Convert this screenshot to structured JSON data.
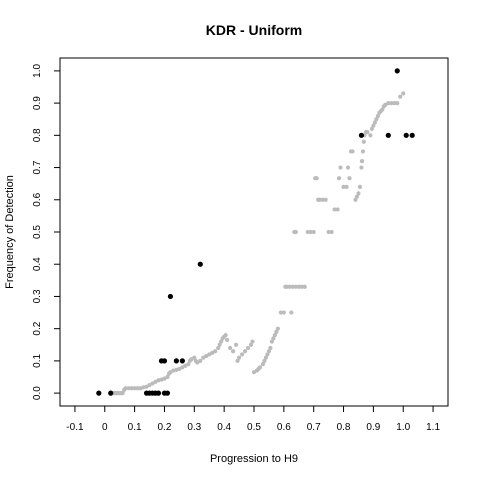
{
  "chart_data": {
    "type": "scatter",
    "title": "KDR - Uniform",
    "xlabel": "Progression to H9",
    "ylabel": "Frequency of Detection",
    "xlim": [
      -0.15,
      1.15
    ],
    "ylim": [
      -0.04,
      1.04
    ],
    "x_ticks": [
      "-0.1",
      "0",
      "0.1",
      "0.2",
      "0.3",
      "0.4",
      "0.5",
      "0.6",
      "0.7",
      "0.8",
      "0.9",
      "1.0",
      "1.1"
    ],
    "y_ticks": [
      "0.0",
      "0.1",
      "0.2",
      "0.3",
      "0.4",
      "0.5",
      "0.6",
      "0.7",
      "0.8",
      "0.9",
      "1.0"
    ],
    "grid": false,
    "legend": "none",
    "colors": {
      "reference_curve": "#bbbbbb",
      "observed": "#000000"
    },
    "series": [
      {
        "marker": "gray-dots",
        "points": [
          [
            0.03,
            0.0
          ],
          [
            0.035,
            0.0
          ],
          [
            0.04,
            0.0
          ],
          [
            0.045,
            0.0
          ],
          [
            0.05,
            0.0
          ],
          [
            0.055,
            0.0
          ],
          [
            0.06,
            0.0
          ],
          [
            0.065,
            0.01
          ],
          [
            0.07,
            0.015
          ],
          [
            0.08,
            0.015
          ],
          [
            0.09,
            0.015
          ],
          [
            0.1,
            0.015
          ],
          [
            0.11,
            0.015
          ],
          [
            0.12,
            0.015
          ],
          [
            0.13,
            0.018
          ],
          [
            0.14,
            0.02
          ],
          [
            0.15,
            0.025
          ],
          [
            0.16,
            0.03
          ],
          [
            0.17,
            0.035
          ],
          [
            0.18,
            0.04
          ],
          [
            0.19,
            0.042
          ],
          [
            0.2,
            0.045
          ],
          [
            0.21,
            0.05
          ],
          [
            0.215,
            0.06
          ],
          [
            0.22,
            0.065
          ],
          [
            0.23,
            0.07
          ],
          [
            0.24,
            0.072
          ],
          [
            0.25,
            0.075
          ],
          [
            0.26,
            0.08
          ],
          [
            0.27,
            0.085
          ],
          [
            0.28,
            0.09
          ],
          [
            0.285,
            0.1
          ],
          [
            0.29,
            0.105
          ],
          [
            0.3,
            0.11
          ],
          [
            0.305,
            0.1
          ],
          [
            0.31,
            0.095
          ],
          [
            0.32,
            0.1
          ],
          [
            0.33,
            0.11
          ],
          [
            0.34,
            0.115
          ],
          [
            0.35,
            0.12
          ],
          [
            0.36,
            0.125
          ],
          [
            0.37,
            0.13
          ],
          [
            0.38,
            0.14
          ],
          [
            0.385,
            0.15
          ],
          [
            0.39,
            0.16
          ],
          [
            0.395,
            0.17
          ],
          [
            0.4,
            0.175
          ],
          [
            0.405,
            0.18
          ],
          [
            0.41,
            0.165
          ],
          [
            0.42,
            0.14
          ],
          [
            0.43,
            0.13
          ],
          [
            0.44,
            0.15
          ],
          [
            0.445,
            0.1
          ],
          [
            0.45,
            0.11
          ],
          [
            0.46,
            0.12
          ],
          [
            0.47,
            0.13
          ],
          [
            0.48,
            0.14
          ],
          [
            0.49,
            0.15
          ],
          [
            0.495,
            0.16
          ],
          [
            0.5,
            0.065
          ],
          [
            0.51,
            0.07
          ],
          [
            0.515,
            0.075
          ],
          [
            0.52,
            0.08
          ],
          [
            0.53,
            0.09
          ],
          [
            0.535,
            0.1
          ],
          [
            0.54,
            0.11
          ],
          [
            0.545,
            0.12
          ],
          [
            0.55,
            0.13
          ],
          [
            0.555,
            0.14
          ],
          [
            0.56,
            0.16
          ],
          [
            0.565,
            0.17
          ],
          [
            0.57,
            0.18
          ],
          [
            0.575,
            0.19
          ],
          [
            0.58,
            0.2
          ],
          [
            0.59,
            0.25
          ],
          [
            0.6,
            0.25
          ],
          [
            0.605,
            0.33
          ],
          [
            0.61,
            0.33
          ],
          [
            0.62,
            0.33
          ],
          [
            0.625,
            0.25
          ],
          [
            0.63,
            0.33
          ],
          [
            0.64,
            0.33
          ],
          [
            0.65,
            0.33
          ],
          [
            0.66,
            0.33
          ],
          [
            0.67,
            0.33
          ],
          [
            0.635,
            0.5
          ],
          [
            0.64,
            0.5
          ],
          [
            0.68,
            0.5
          ],
          [
            0.69,
            0.5
          ],
          [
            0.7,
            0.5
          ],
          [
            0.705,
            0.667
          ],
          [
            0.71,
            0.667
          ],
          [
            0.715,
            0.6
          ],
          [
            0.72,
            0.6
          ],
          [
            0.73,
            0.6
          ],
          [
            0.74,
            0.6
          ],
          [
            0.75,
            0.5
          ],
          [
            0.76,
            0.5
          ],
          [
            0.77,
            0.57
          ],
          [
            0.78,
            0.57
          ],
          [
            0.785,
            0.667
          ],
          [
            0.79,
            0.7
          ],
          [
            0.8,
            0.64
          ],
          [
            0.81,
            0.64
          ],
          [
            0.815,
            0.7
          ],
          [
            0.82,
            0.667
          ],
          [
            0.825,
            0.75
          ],
          [
            0.83,
            0.75
          ],
          [
            0.84,
            0.6
          ],
          [
            0.845,
            0.61
          ],
          [
            0.85,
            0.62
          ],
          [
            0.855,
            0.64
          ],
          [
            0.86,
            0.7
          ],
          [
            0.862,
            0.72
          ],
          [
            0.865,
            0.75
          ],
          [
            0.868,
            0.78
          ],
          [
            0.87,
            0.8
          ],
          [
            0.875,
            0.81
          ],
          [
            0.88,
            0.81
          ],
          [
            0.89,
            0.8
          ],
          [
            0.895,
            0.82
          ],
          [
            0.9,
            0.83
          ],
          [
            0.905,
            0.84
          ],
          [
            0.91,
            0.85
          ],
          [
            0.915,
            0.86
          ],
          [
            0.92,
            0.87
          ],
          [
            0.925,
            0.875
          ],
          [
            0.93,
            0.88
          ],
          [
            0.935,
            0.89
          ],
          [
            0.94,
            0.895
          ],
          [
            0.95,
            0.9
          ],
          [
            0.96,
            0.9
          ],
          [
            0.97,
            0.9
          ],
          [
            0.98,
            0.9
          ],
          [
            0.99,
            0.92
          ],
          [
            1.0,
            0.93
          ]
        ]
      },
      {
        "marker": "black-dots",
        "points": [
          [
            -0.02,
            0.0
          ],
          [
            0.02,
            0.0
          ],
          [
            0.14,
            0.0
          ],
          [
            0.15,
            0.0
          ],
          [
            0.16,
            0.0
          ],
          [
            0.17,
            0.0
          ],
          [
            0.18,
            0.0
          ],
          [
            0.2,
            0.0
          ],
          [
            0.21,
            0.0
          ],
          [
            0.19,
            0.1
          ],
          [
            0.2,
            0.1
          ],
          [
            0.24,
            0.1
          ],
          [
            0.26,
            0.1
          ],
          [
            0.22,
            0.3
          ],
          [
            0.32,
            0.4
          ],
          [
            0.86,
            0.8
          ],
          [
            0.95,
            0.8
          ],
          [
            0.98,
            1.0
          ],
          [
            1.01,
            0.8
          ],
          [
            1.03,
            0.8
          ]
        ]
      }
    ]
  }
}
